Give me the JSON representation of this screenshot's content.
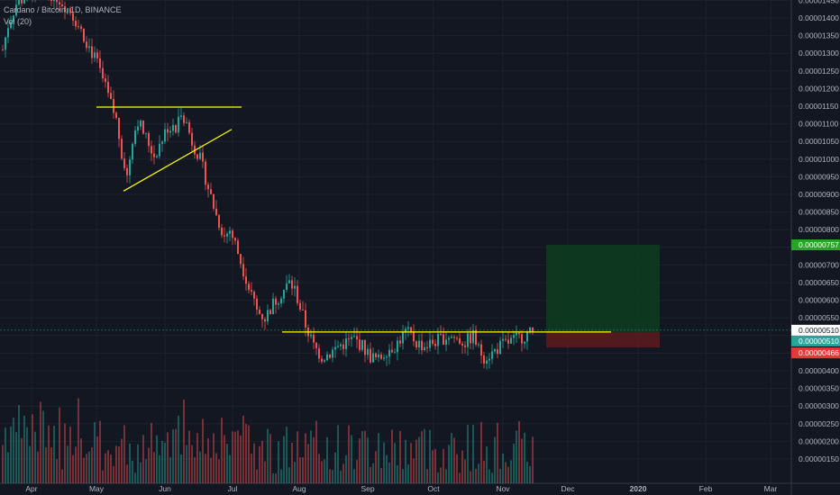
{
  "chart_data": {
    "type": "candlestick",
    "title": "Cardano / Bitcoin, 1D, BINANCE",
    "indicator": "Vol (20)",
    "y_range": [
      1.075e-06,
      1.46e-06
    ],
    "y_ticks": [
      "0.00001450",
      "0.00001400",
      "0.00001350",
      "0.00001300",
      "0.00001250",
      "0.00001200",
      "0.00001150",
      "0.00001100",
      "0.00001050",
      "0.00001000",
      "0.00000950",
      "0.00000900",
      "0.00000850",
      "0.00000800",
      "0.00000750",
      "0.00000700",
      "0.00000650",
      "0.00000600",
      "0.00000550",
      "0.00000500",
      "0.00000450",
      "0.00000400",
      "0.00000350",
      "0.00000300",
      "0.00000250",
      "0.00000200",
      "0.00000150"
    ],
    "x_ticks": [
      "Apr",
      "May",
      "Jun",
      "Jul",
      "Aug",
      "Sep",
      "Oct",
      "Nov",
      "Dec",
      "2020",
      "Feb",
      "Mar"
    ],
    "price_labels": [
      {
        "text": "0.00000757",
        "color": "#26a626"
      },
      {
        "text": "0.00000510",
        "color": "#26a69a"
      },
      {
        "text": "0.00000466",
        "color": "#e53935"
      }
    ],
    "crosshair_label": "0.00000510",
    "price_path": [
      [
        0,
        1.31e-05
      ],
      [
        2,
        1.38e-05
      ],
      [
        5,
        1.44e-05
      ],
      [
        10,
        1.47e-05
      ],
      [
        15,
        1.48e-05
      ],
      [
        20,
        1.46e-05
      ],
      [
        25,
        1.42e-05
      ],
      [
        30,
        1.35e-05
      ],
      [
        35,
        1.27e-05
      ],
      [
        38,
        1.2e-05
      ],
      [
        42,
        1.11e-05
      ],
      [
        44,
        1.02e-05
      ],
      [
        46,
        9.5e-06
      ],
      [
        48,
        1.06e-05
      ],
      [
        50,
        1.11e-05
      ],
      [
        53,
        1.06e-05
      ],
      [
        56,
        1.01e-05
      ],
      [
        58,
        1.04e-05
      ],
      [
        61,
        1.09e-05
      ],
      [
        64,
        1.08e-05
      ],
      [
        66,
        1.14e-05
      ],
      [
        68,
        1.1e-05
      ],
      [
        70,
        1.05e-05
      ],
      [
        73,
        1e-05
      ],
      [
        76,
        9.2e-06
      ],
      [
        79,
        8.4e-06
      ],
      [
        82,
        7.8e-06
      ],
      [
        84,
        8e-06
      ],
      [
        86,
        7.6e-06
      ],
      [
        88,
        7.1e-06
      ],
      [
        91,
        6.4e-06
      ],
      [
        94,
        5.7e-06
      ],
      [
        97,
        5.5e-06
      ],
      [
        100,
        5.9e-06
      ],
      [
        103,
        6.2e-06
      ],
      [
        106,
        6.5e-06
      ],
      [
        108,
        6.3e-06
      ],
      [
        110,
        5.8e-06
      ],
      [
        112,
        5.3e-06
      ],
      [
        115,
        4.7e-06
      ],
      [
        118,
        4.4e-06
      ],
      [
        121,
        4.5e-06
      ],
      [
        124,
        4.7e-06
      ],
      [
        127,
        4.8e-06
      ],
      [
        130,
        4.9e-06
      ],
      [
        133,
        4.7e-06
      ],
      [
        136,
        4.4e-06
      ],
      [
        139,
        4.3e-06
      ],
      [
        142,
        4.6e-06
      ],
      [
        145,
        4.7e-06
      ],
      [
        147,
        4.9e-06
      ],
      [
        149,
        5.1e-06
      ],
      [
        151,
        5e-06
      ],
      [
        153,
        4.8e-06
      ],
      [
        156,
        4.7e-06
      ],
      [
        159,
        4.8e-06
      ],
      [
        162,
        4.9e-06
      ],
      [
        165,
        5e-06
      ],
      [
        168,
        4.9e-06
      ],
      [
        171,
        4.8e-06
      ],
      [
        174,
        5e-06
      ],
      [
        176,
        4.6e-06
      ],
      [
        178,
        4.4e-06
      ],
      [
        181,
        4.5e-06
      ],
      [
        184,
        4.7e-06
      ],
      [
        187,
        4.8e-06
      ],
      [
        190,
        4.9e-06
      ],
      [
        193,
        5e-06
      ],
      [
        196,
        5.1e-06
      ]
    ],
    "drawings": {
      "resistance_top": 1.15e-05,
      "triangle_low": 9.4e-06,
      "triangle_high": 1.12e-05,
      "horizontal_level": 5.1e-06,
      "target": 7.57e-06,
      "stop": 4.66e-06
    },
    "colors": {
      "up": "#26a69a",
      "down": "#ef5350",
      "drawing": "#ffff00",
      "background": "#131722"
    }
  }
}
